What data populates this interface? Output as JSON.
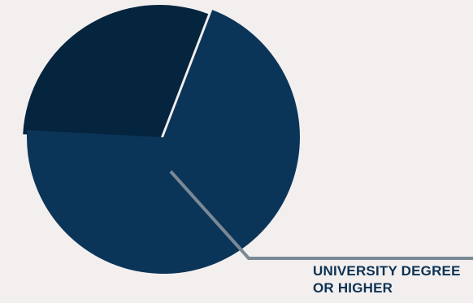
{
  "chart_data": {
    "type": "pie",
    "slices": [
      {
        "label": "",
        "value": 30,
        "color": "#05243e"
      },
      {
        "label": "UNIVERSITY DEGREE OR HIGHER",
        "value": 70,
        "color": "#0b3558"
      }
    ],
    "callout": {
      "line1": "UNIVERSITY DEGREE",
      "line2": "OR HIGHER",
      "line_color": "#7b8996"
    }
  }
}
